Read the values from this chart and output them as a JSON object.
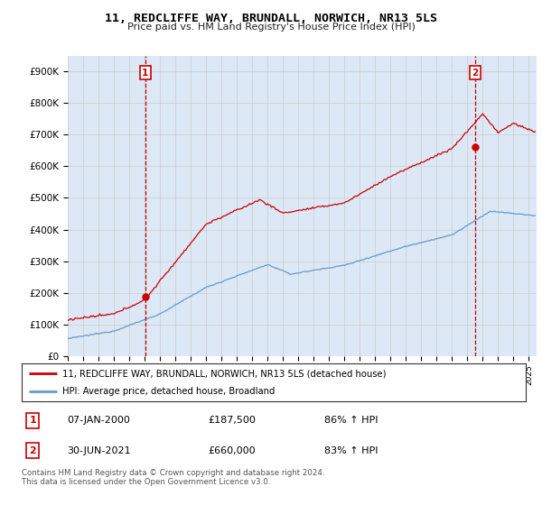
{
  "title": "11, REDCLIFFE WAY, BRUNDALL, NORWICH, NR13 5LS",
  "subtitle": "Price paid vs. HM Land Registry's House Price Index (HPI)",
  "ylim": [
    0,
    950000
  ],
  "yticks": [
    0,
    100000,
    200000,
    300000,
    400000,
    500000,
    600000,
    700000,
    800000,
    900000
  ],
  "ytick_labels": [
    "£0",
    "£100K",
    "£200K",
    "£300K",
    "£400K",
    "£500K",
    "£600K",
    "£700K",
    "£800K",
    "£900K"
  ],
  "sale1_date": 2000.04,
  "sale1_price": 187500,
  "sale2_date": 2021.5,
  "sale2_price": 660000,
  "legend_line1": "11, REDCLIFFE WAY, BRUNDALL, NORWICH, NR13 5LS (detached house)",
  "legend_line2": "HPI: Average price, detached house, Broadland",
  "annotation1_label": "1",
  "annotation1_date": "07-JAN-2000",
  "annotation1_price": "£187,500",
  "annotation1_hpi": "86% ↑ HPI",
  "annotation2_label": "2",
  "annotation2_date": "30-JUN-2021",
  "annotation2_price": "£660,000",
  "annotation2_hpi": "83% ↑ HPI",
  "footer": "Contains HM Land Registry data © Crown copyright and database right 2024.\nThis data is licensed under the Open Government Licence v3.0.",
  "line_red_color": "#cc0000",
  "line_blue_color": "#6699cc",
  "grid_color": "#cccccc",
  "bg_color": "#ffffff",
  "plot_bg_color": "#dce8f5"
}
